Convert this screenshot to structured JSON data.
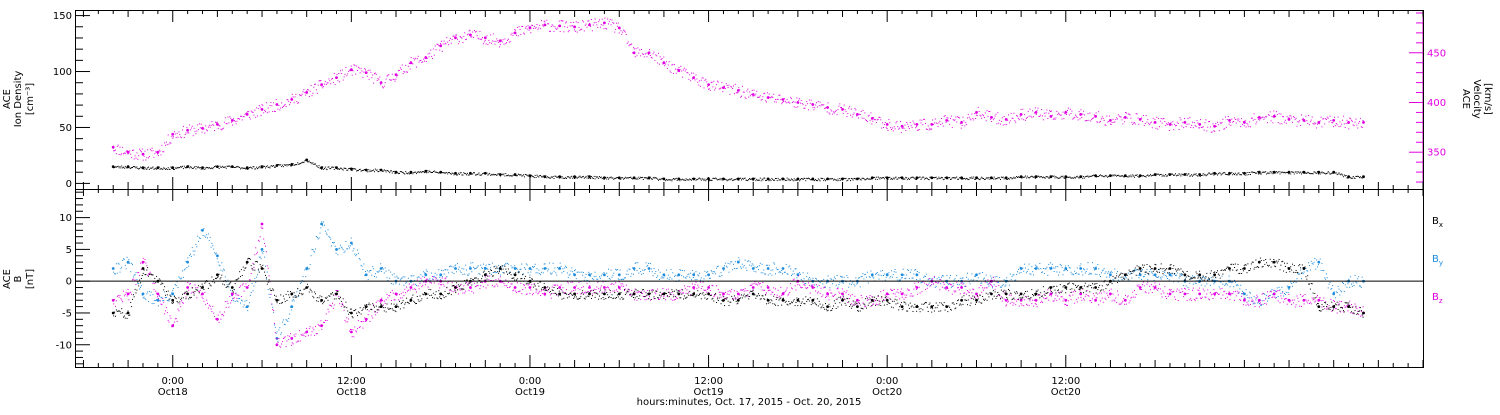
{
  "chart_data": [
    {
      "type": "scatter",
      "panel": "plasma",
      "ylabel_left": [
        "ACE",
        "Ion Density",
        "[cm⁻³]"
      ],
      "ylabel_right": [
        "ACE",
        "Velocity",
        "[km/s]"
      ],
      "ylim_left": [
        -5,
        155
      ],
      "left_ticks": [
        "0",
        "50",
        "100",
        "150"
      ],
      "ylim_right": [
        313,
        493
      ],
      "right_ticks": [
        "350",
        "400",
        "450"
      ],
      "colors": {
        "density": "#000000",
        "velocity": "#e000e0"
      },
      "series": [
        {
          "name": "density",
          "x": [
            -4,
            -3,
            -2,
            -1,
            0,
            1,
            2,
            3,
            4,
            5,
            6,
            7,
            8,
            9,
            10,
            11,
            12,
            13,
            14,
            15,
            16,
            17,
            18,
            19,
            20,
            21,
            22,
            23,
            24,
            25,
            26,
            27,
            28,
            29,
            30,
            31,
            32,
            33,
            34,
            35,
            36,
            37,
            38,
            39,
            40,
            41,
            42,
            43,
            44,
            45,
            46,
            47,
            48,
            49,
            50,
            51,
            52,
            53,
            54,
            55,
            56,
            57,
            58,
            59,
            60,
            61,
            62,
            63,
            64,
            65,
            66,
            67,
            68,
            69,
            70,
            71,
            72,
            73,
            74,
            75,
            76,
            77,
            78,
            79,
            80
          ],
          "y": [
            15,
            15,
            14,
            14,
            14,
            15,
            14,
            15,
            15,
            14,
            15,
            16,
            17,
            21,
            14,
            14,
            13,
            12,
            12,
            10,
            10,
            11,
            10,
            9,
            9,
            9,
            8,
            8,
            7,
            6,
            6,
            6,
            6,
            5,
            5,
            5,
            5,
            4,
            4,
            4,
            4,
            4,
            4,
            4,
            4,
            4,
            4,
            4,
            4,
            4,
            4,
            5,
            5,
            5,
            5,
            5,
            5,
            5,
            5,
            5,
            5,
            6,
            6,
            6,
            6,
            6,
            7,
            7,
            7,
            7,
            8,
            8,
            8,
            8,
            9,
            9,
            9,
            10,
            10,
            10,
            10,
            10,
            10,
            6,
            6
          ]
        },
        {
          "name": "velocity",
          "x": [
            -4,
            -3,
            -2,
            -1,
            0,
            1,
            2,
            3,
            4,
            5,
            6,
            7,
            8,
            9,
            10,
            11,
            12,
            13,
            14,
            15,
            16,
            17,
            18,
            19,
            20,
            21,
            22,
            23,
            24,
            25,
            26,
            27,
            28,
            29,
            30,
            31,
            32,
            33,
            34,
            35,
            36,
            37,
            38,
            39,
            40,
            41,
            42,
            43,
            44,
            45,
            46,
            47,
            48,
            49,
            50,
            51,
            52,
            53,
            54,
            55,
            56,
            57,
            58,
            59,
            60,
            61,
            62,
            63,
            64,
            65,
            66,
            67,
            68,
            69,
            70,
            71,
            72,
            73,
            74,
            75,
            76,
            77,
            78,
            79,
            80
          ],
          "y": [
            355,
            350,
            348,
            350,
            368,
            372,
            374,
            378,
            382,
            388,
            393,
            398,
            403,
            410,
            418,
            425,
            433,
            430,
            420,
            428,
            440,
            445,
            457,
            465,
            468,
            465,
            462,
            470,
            475,
            478,
            477,
            476,
            478,
            480,
            475,
            450,
            450,
            440,
            432,
            425,
            418,
            415,
            412,
            408,
            405,
            403,
            400,
            398,
            395,
            393,
            388,
            384,
            378,
            376,
            378,
            378,
            382,
            380,
            390,
            385,
            383,
            388,
            390,
            386,
            390,
            388,
            386,
            382,
            385,
            383,
            380,
            378,
            380,
            378,
            376,
            382,
            380,
            385,
            386,
            383,
            382,
            380,
            382,
            380,
            380
          ]
        }
      ]
    },
    {
      "type": "scatter",
      "panel": "magnetic-field",
      "ylabel": [
        "ACE",
        "B",
        "[nT]"
      ],
      "ylim": [
        -13.5,
        14.5
      ],
      "yticks": [
        "10",
        "5",
        "0",
        "-5",
        "-10"
      ],
      "legend": [
        {
          "label": "B",
          "sub": "x",
          "color": "#000000"
        },
        {
          "label": "B",
          "sub": "y",
          "color": "#1e8cdc"
        },
        {
          "label": "B",
          "sub": "z",
          "color": "#e000e0"
        }
      ],
      "legend_position": "right",
      "series": [
        {
          "name": "Bx",
          "x": [
            -4,
            -3,
            -2,
            -1,
            0,
            1,
            2,
            3,
            4,
            5,
            6,
            7,
            8,
            9,
            10,
            11,
            12,
            13,
            14,
            15,
            16,
            17,
            18,
            19,
            20,
            21,
            22,
            23,
            24,
            25,
            26,
            27,
            28,
            29,
            30,
            31,
            32,
            33,
            34,
            35,
            36,
            37,
            38,
            39,
            40,
            41,
            42,
            43,
            44,
            45,
            46,
            47,
            48,
            49,
            50,
            51,
            52,
            53,
            54,
            55,
            56,
            57,
            58,
            59,
            60,
            61,
            62,
            63,
            64,
            65,
            66,
            67,
            68,
            69,
            70,
            71,
            72,
            73,
            74,
            75,
            76,
            77,
            78,
            79,
            80
          ],
          "y": [
            -5,
            -5,
            2,
            0,
            -3,
            -2,
            -1,
            1,
            -1,
            3,
            2,
            -3,
            -2,
            -1,
            -3,
            -2,
            -5,
            -4,
            -4,
            -4,
            -3,
            -2,
            -2,
            -1,
            0,
            1,
            2,
            1,
            0,
            -1,
            -2,
            -2,
            -2,
            -2,
            -2,
            -2,
            -2,
            -2,
            -2,
            -2,
            -2,
            -3,
            -3,
            -2,
            -3,
            -3,
            -3,
            -3,
            -4,
            -3,
            -4,
            -3,
            -3,
            -4,
            -4,
            -4,
            -4,
            -3,
            -3,
            -2,
            -2,
            -2,
            -2,
            -1,
            -1,
            -1,
            -1,
            0,
            1,
            2,
            2,
            2,
            1,
            1,
            1,
            2,
            2,
            3,
            3,
            2,
            2,
            -4,
            -4,
            -4,
            -5
          ]
        },
        {
          "name": "By",
          "x": [
            -4,
            -3,
            -2,
            -1,
            0,
            1,
            2,
            3,
            4,
            5,
            6,
            7,
            8,
            9,
            10,
            11,
            12,
            13,
            14,
            15,
            16,
            17,
            18,
            19,
            20,
            21,
            22,
            23,
            24,
            25,
            26,
            27,
            28,
            29,
            30,
            31,
            32,
            33,
            34,
            35,
            36,
            37,
            38,
            39,
            40,
            41,
            42,
            43,
            44,
            45,
            46,
            47,
            48,
            49,
            50,
            51,
            52,
            53,
            54,
            55,
            56,
            57,
            58,
            59,
            60,
            61,
            62,
            63,
            64,
            65,
            66,
            67,
            68,
            69,
            70,
            71,
            72,
            73,
            74,
            75,
            76,
            77,
            78,
            79,
            80
          ],
          "y": [
            2,
            3,
            -2,
            -3,
            -2,
            3,
            8,
            4,
            -2,
            -4,
            5,
            -9,
            -4,
            2,
            9,
            5,
            6,
            1,
            2,
            0,
            0,
            1,
            1,
            2,
            2,
            2,
            2,
            2,
            2,
            2,
            2,
            1,
            1,
            1,
            1,
            2,
            2,
            1,
            1,
            1,
            1,
            2,
            3,
            2,
            2,
            2,
            1,
            0,
            0,
            0,
            0,
            1,
            1,
            1,
            1,
            0,
            0,
            0,
            1,
            0,
            0,
            2,
            2,
            2,
            2,
            2,
            2,
            1,
            1,
            1,
            1,
            1,
            0,
            0,
            0,
            0,
            -2,
            -3,
            -2,
            -1,
            2,
            3,
            -2,
            0,
            0
          ]
        },
        {
          "name": "Bz",
          "x": [
            -4,
            -3,
            -2,
            -1,
            0,
            1,
            2,
            3,
            4,
            5,
            6,
            7,
            8,
            9,
            10,
            11,
            12,
            13,
            14,
            15,
            16,
            17,
            18,
            19,
            20,
            21,
            22,
            23,
            24,
            25,
            26,
            27,
            28,
            29,
            30,
            31,
            32,
            33,
            34,
            35,
            36,
            37,
            38,
            39,
            40,
            41,
            42,
            43,
            44,
            45,
            46,
            47,
            48,
            49,
            50,
            51,
            52,
            53,
            54,
            55,
            56,
            57,
            58,
            59,
            60,
            61,
            62,
            63,
            64,
            65,
            66,
            67,
            68,
            69,
            70,
            71,
            72,
            73,
            74,
            75,
            76,
            77,
            78,
            79,
            80
          ],
          "y": [
            -3,
            -2,
            3,
            -2,
            -7,
            -1,
            -2,
            -6,
            -2,
            -1,
            9,
            -10,
            -9,
            -8,
            -7,
            -2,
            -8,
            -6,
            -3,
            -2,
            -1,
            0,
            0,
            -1,
            -1,
            0,
            0,
            -1,
            -1,
            -2,
            -1,
            -1,
            -1,
            -1,
            -1,
            -2,
            -2,
            -2,
            -2,
            -1,
            -1,
            -2,
            -2,
            -1,
            -1,
            -2,
            0,
            -1,
            -2,
            -2,
            -3,
            -3,
            -2,
            -2,
            -1,
            0,
            -1,
            -1,
            -2,
            0,
            -3,
            -3,
            -3,
            -2,
            -3,
            -2,
            -3,
            -2,
            -3,
            -1,
            -1,
            -2,
            -2,
            -2,
            -2,
            -2,
            -3,
            -3,
            -2,
            -3,
            -3,
            -3,
            -4,
            -4,
            -5
          ]
        }
      ]
    }
  ],
  "time_axis": {
    "x_unit": "hours from 0:00 Oct 18, 2015",
    "xlim": [
      -6.5,
      84
    ],
    "labels": [
      {
        "x": 0,
        "time": "0:00",
        "date": "Oct18"
      },
      {
        "x": 12,
        "time": "12:00",
        "date": "Oct18"
      },
      {
        "x": 24,
        "time": "0:00",
        "date": "Oct19"
      },
      {
        "x": 36,
        "time": "12:00",
        "date": "Oct19"
      },
      {
        "x": 48,
        "time": "0:00",
        "date": "Oct20"
      },
      {
        "x": 60,
        "time": "12:00",
        "date": "Oct20"
      }
    ],
    "xlabel": "hours:minutes, Oct. 17, 2015 - Oct. 20, 2015"
  }
}
